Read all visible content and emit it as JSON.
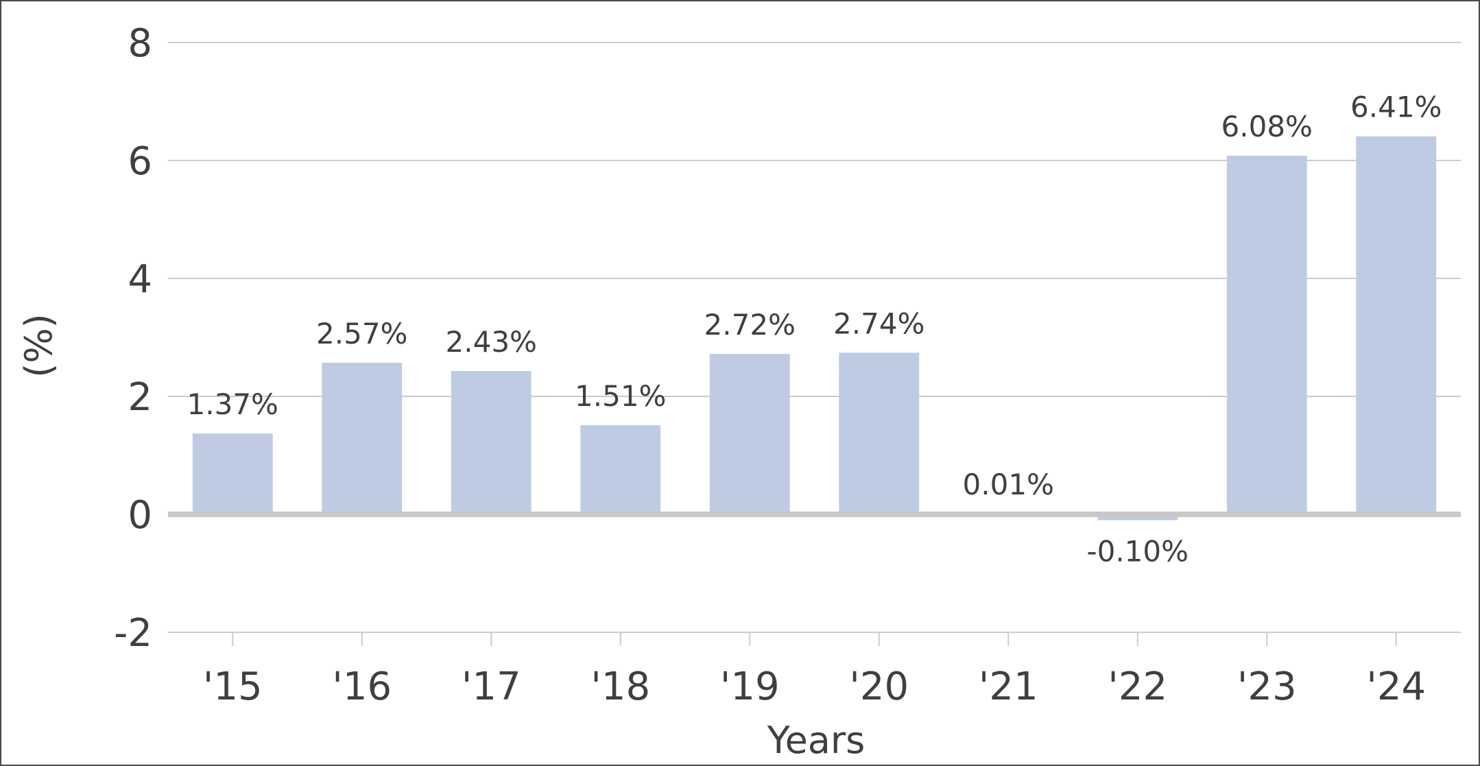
{
  "chart_data": {
    "type": "bar",
    "categories": [
      "'15",
      "'16",
      "'17",
      "'18",
      "'19",
      "'20",
      "'21",
      "'22",
      "'23",
      "'24"
    ],
    "values": [
      1.37,
      2.57,
      2.43,
      1.51,
      2.72,
      2.74,
      0.01,
      -0.1,
      6.08,
      6.41
    ],
    "data_labels": [
      "1.37%",
      "2.57%",
      "2.43%",
      "1.51%",
      "2.72%",
      "2.74%",
      "0.01%",
      "-0.10%",
      "6.08%",
      "6.41%"
    ],
    "xlabel": "Years",
    "ylabel": "(%)",
    "ylim": [
      -2,
      8
    ],
    "yticks": [
      -2,
      0,
      2,
      4,
      6,
      8
    ],
    "grid": true,
    "colors": {
      "bar": "#bfcbe3",
      "grid": "#cccccc",
      "zero_line": "#c8c8c8",
      "text": "#3f3f3f"
    }
  }
}
